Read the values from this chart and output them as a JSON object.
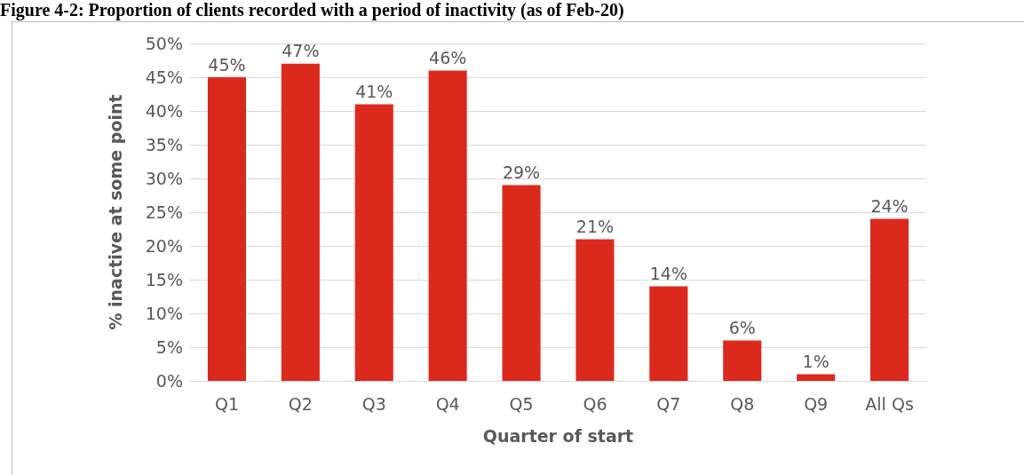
{
  "chart_data": {
    "type": "bar",
    "title": "Figure 4-2: Proportion of clients recorded with a period of inactivity (as of Feb-20)",
    "xlabel": "Quarter of start",
    "ylabel": "% inactive at some point",
    "categories": [
      "Q1",
      "Q2",
      "Q3",
      "Q4",
      "Q5",
      "Q6",
      "Q7",
      "Q8",
      "Q9",
      "All Qs"
    ],
    "values": [
      45,
      47,
      41,
      46,
      29,
      21,
      14,
      6,
      1,
      24
    ],
    "value_labels": [
      "45%",
      "47%",
      "41%",
      "46%",
      "29%",
      "21%",
      "14%",
      "6%",
      "1%",
      "24%"
    ],
    "color": "#dc291e",
    "ylim": [
      0,
      50
    ],
    "yticks": [
      {
        "value": 0,
        "label": "0%"
      },
      {
        "value": 5,
        "label": "5%"
      },
      {
        "value": 10,
        "label": "10%"
      },
      {
        "value": 15,
        "label": "15%"
      },
      {
        "value": 20,
        "label": "20%"
      },
      {
        "value": 25,
        "label": "25%"
      },
      {
        "value": 30,
        "label": "30%"
      },
      {
        "value": 35,
        "label": "35%"
      },
      {
        "value": 40,
        "label": "40%"
      },
      {
        "value": 45,
        "label": "45%"
      },
      {
        "value": 50,
        "label": "50%"
      }
    ],
    "grid": "y"
  }
}
